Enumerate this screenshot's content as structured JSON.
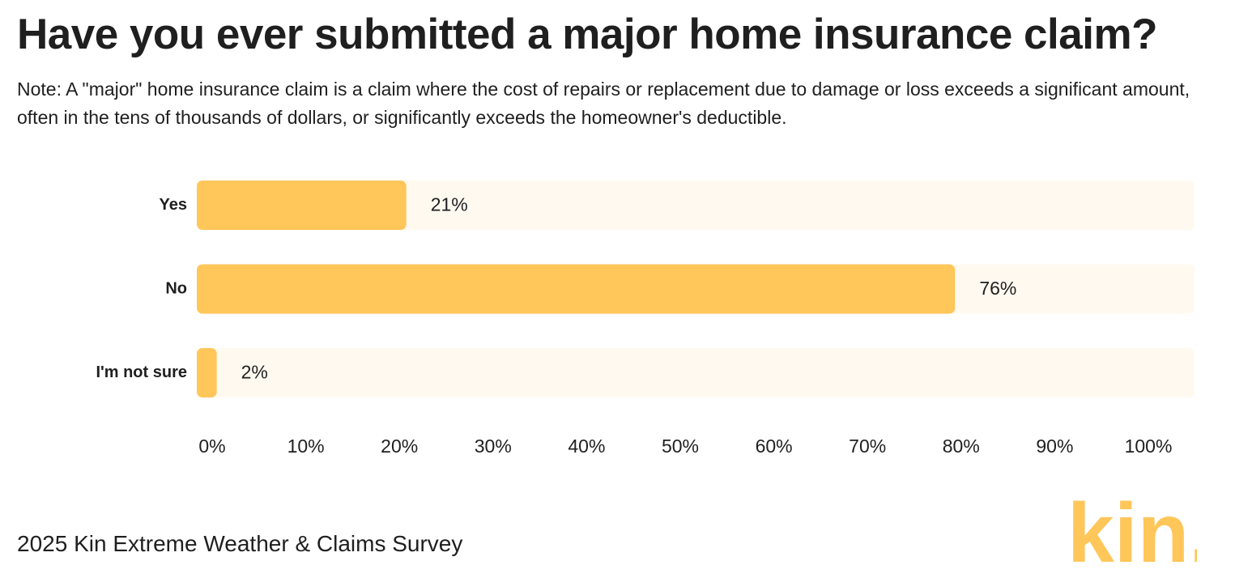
{
  "header": {
    "title": "Have you ever submitted a major home insurance claim?",
    "note": "Note: A \"major\" home insurance claim is a claim where the cost of repairs or replacement due to damage or loss exceeds a significant amount, often in the tens of thousands of dollars, or significantly exceeds the homeowner's deductible."
  },
  "chart_data": {
    "type": "bar",
    "orientation": "horizontal",
    "categories": [
      "Yes",
      "No",
      "I'm not sure"
    ],
    "values": [
      21,
      76,
      2
    ],
    "value_labels": [
      "21%",
      "76%",
      "2%"
    ],
    "x_ticks": [
      "0%",
      "10%",
      "20%",
      "30%",
      "40%",
      "50%",
      "60%",
      "70%",
      "80%",
      "90%",
      "100%"
    ],
    "xlim": [
      0,
      100
    ],
    "grid": false,
    "legend": "none",
    "colors": {
      "bar": "#ffc659",
      "track": "#fff9f0"
    }
  },
  "footer": {
    "source": "2025 Kin Extreme Weather & Claims Survey"
  },
  "logo": {
    "text": "kin.",
    "color": "#ffc659"
  }
}
